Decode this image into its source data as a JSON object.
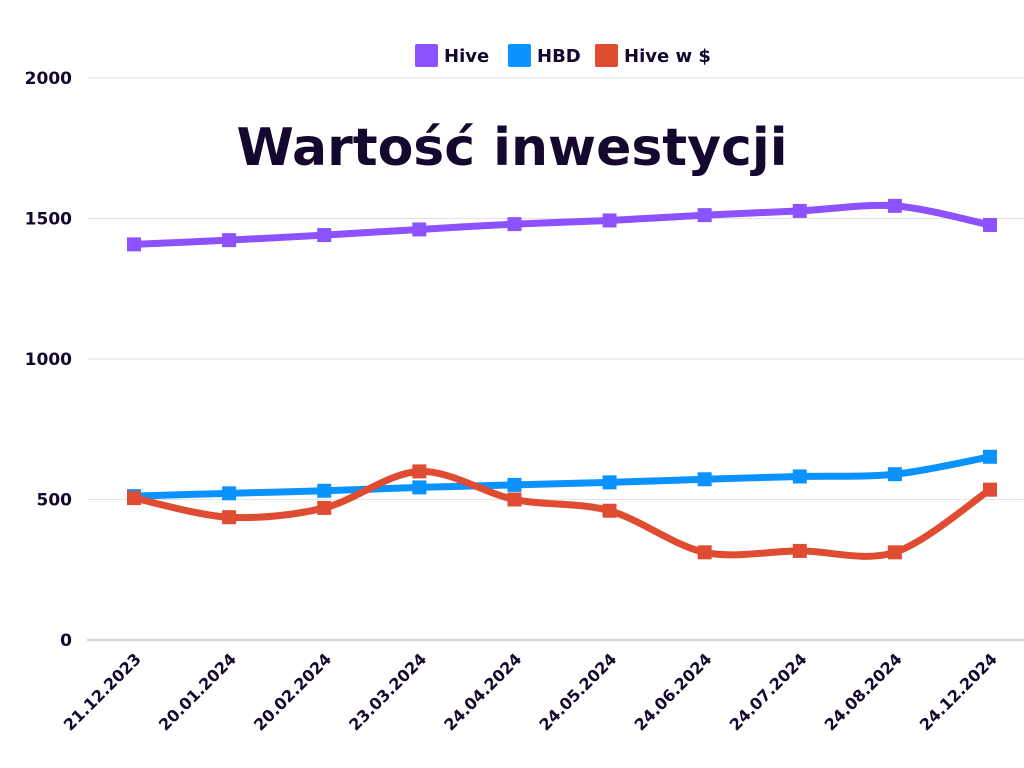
{
  "chart_data": {
    "type": "line",
    "title": "Wartość inwestycji",
    "xlabel": "",
    "ylabel": "",
    "categories": [
      "21.12.2023",
      "20.01.2024",
      "20.02.2024",
      "23.03.2024",
      "24.04.2024",
      "24.05.2024",
      "24.06.2024",
      "24.07.2024",
      "24.08.2024",
      "24.12.2024"
    ],
    "ylim": [
      0,
      2000
    ],
    "yticks": [
      0,
      500,
      1000,
      1500,
      2000
    ],
    "grid": true,
    "legend_position": "top-center",
    "series": [
      {
        "name": "Hive",
        "color": "#8c52ff",
        "values": [
          1408,
          1423,
          1441,
          1461,
          1480,
          1493,
          1512,
          1527,
          1545,
          1477
        ]
      },
      {
        "name": "HBD",
        "color": "#0a93ff",
        "values": [
          512,
          522,
          531,
          543,
          552,
          561,
          572,
          582,
          590,
          652
        ]
      },
      {
        "name": "Hive w $",
        "color": "#e04c32",
        "values": [
          505,
          437,
          470,
          600,
          500,
          460,
          312,
          317,
          312,
          535
        ]
      }
    ]
  }
}
